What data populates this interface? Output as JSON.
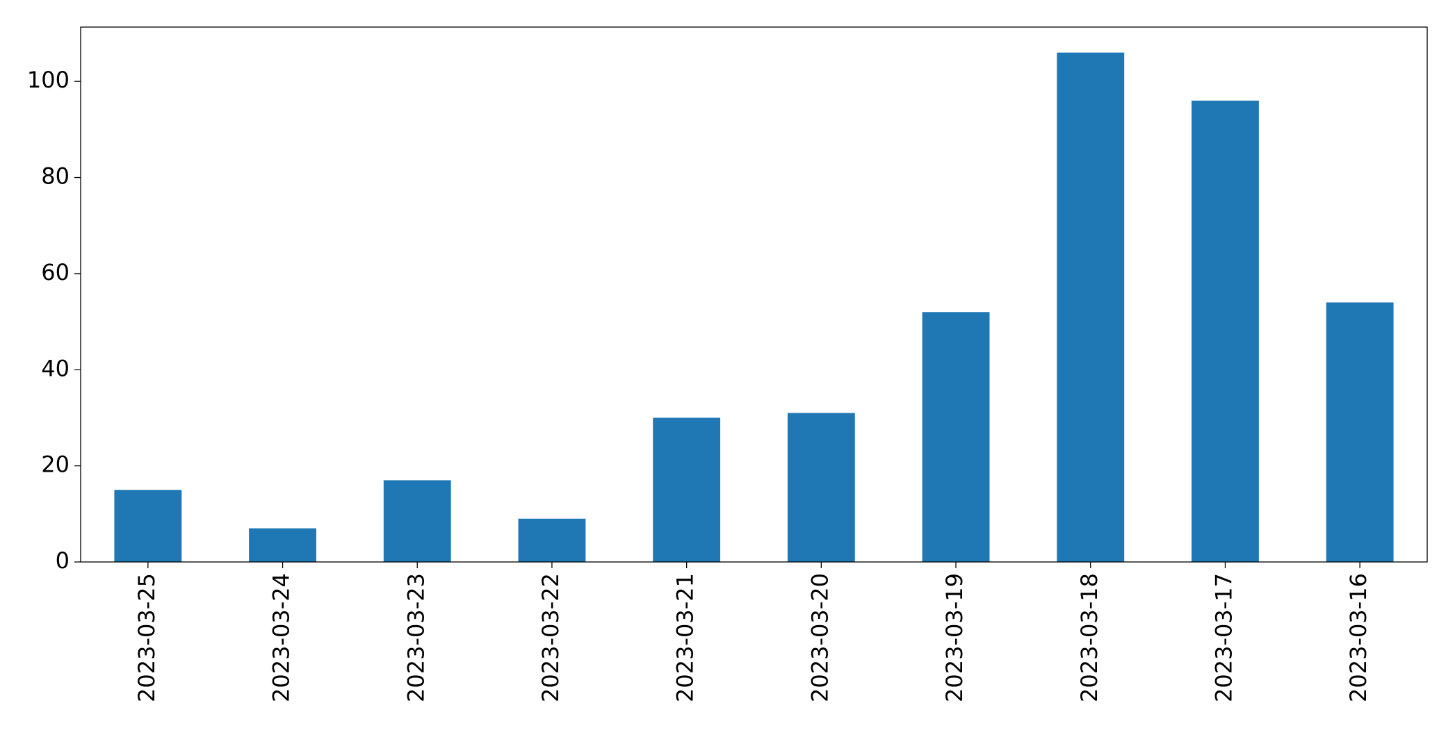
{
  "chart_data": {
    "type": "bar",
    "categories": [
      "2023-03-25",
      "2023-03-24",
      "2023-03-23",
      "2023-03-22",
      "2023-03-21",
      "2023-03-20",
      "2023-03-19",
      "2023-03-18",
      "2023-03-17",
      "2023-03-16"
    ],
    "values": [
      15,
      7,
      17,
      9,
      30,
      31,
      52,
      106,
      96,
      54
    ],
    "color": "#1f77b4",
    "ylim": [
      0,
      111.3
    ],
    "yticks": [
      0,
      20,
      40,
      60,
      80,
      100
    ],
    "grid": false
  }
}
